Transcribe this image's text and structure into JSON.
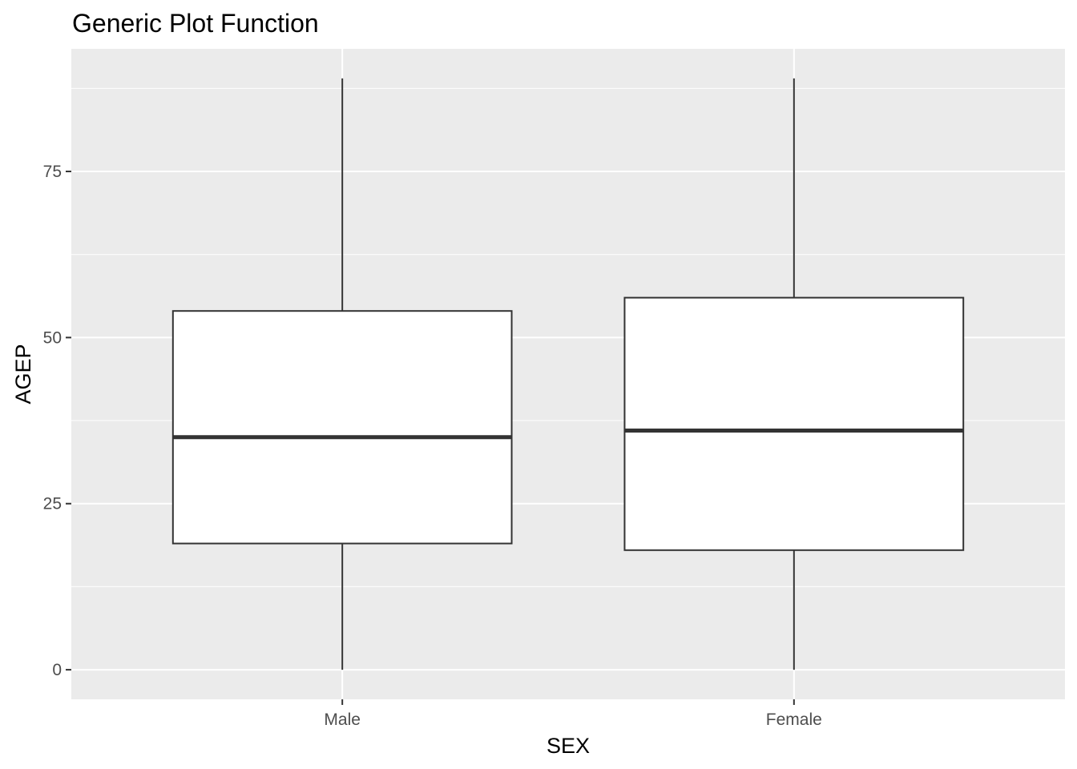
{
  "chart_data": {
    "type": "boxplot",
    "title": "Generic Plot Function",
    "xlabel": "SEX",
    "ylabel": "AGEP",
    "categories": [
      "Male",
      "Female"
    ],
    "boxes": [
      {
        "category": "Male",
        "whisker_low": 0,
        "q1": 19,
        "median": 35,
        "q3": 54,
        "whisker_high": 89
      },
      {
        "category": "Female",
        "whisker_low": 0,
        "q1": 18,
        "median": 36,
        "q3": 56,
        "whisker_high": 89
      }
    ],
    "ylim": [
      -4.45,
      93.45
    ],
    "y_ticks": [
      0,
      25,
      50,
      75
    ],
    "y_tick_labels": [
      "0",
      "25",
      "50",
      "75"
    ],
    "grid": true,
    "colors": {
      "panel_background": "#ebebeb",
      "grid": "#ffffff",
      "box_fill": "#ffffff",
      "box_outline": "#333333",
      "tick": "#333333"
    }
  }
}
